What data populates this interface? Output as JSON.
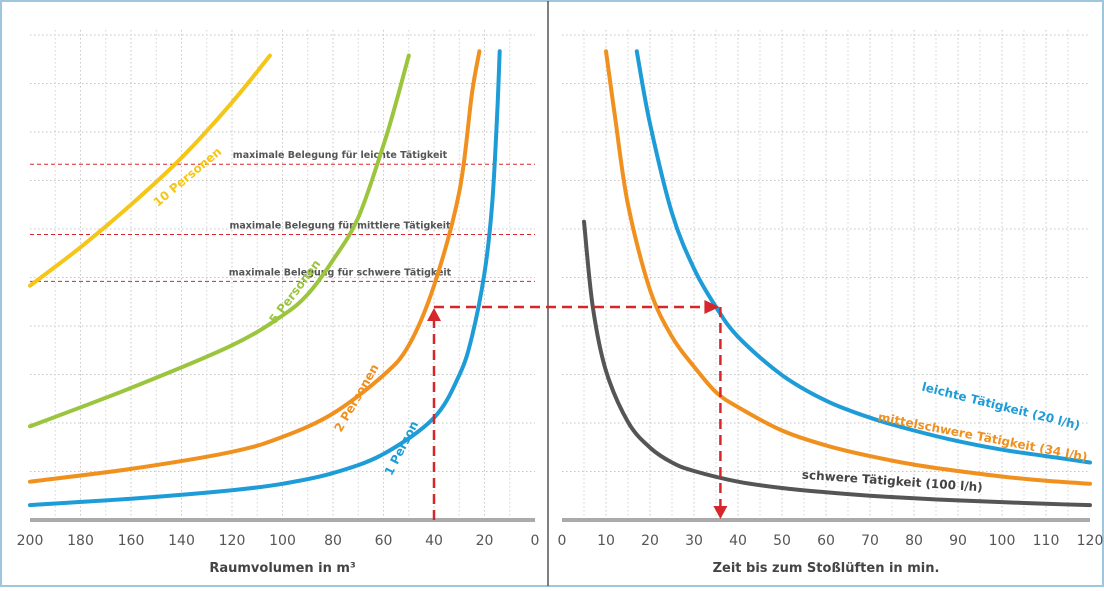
{
  "chart_data": [
    {
      "type": "line",
      "xlabel": "Raumvolumen in m³",
      "x_reversed": true,
      "xlim": [
        0,
        200
      ],
      "xticks": [
        200,
        180,
        160,
        140,
        120,
        100,
        80,
        60,
        40,
        20,
        0
      ],
      "grid": true,
      "series": [
        {
          "name": "10 Personen",
          "color": "#F5C518",
          "x": [
            200,
            180,
            160,
            140,
            120,
            105
          ],
          "y": [
            5.5,
            6.4,
            7.4,
            8.5,
            9.8,
            10.9
          ]
        },
        {
          "name": "5 Personen",
          "color": "#9BC53D",
          "x": [
            200,
            160,
            120,
            100,
            90,
            80,
            70,
            60,
            55,
            50
          ],
          "y": [
            2.2,
            3.1,
            4.1,
            4.8,
            5.3,
            6.1,
            7.1,
            8.8,
            9.8,
            10.9
          ]
        },
        {
          "name": "2 Personen",
          "color": "#F0901E",
          "x": [
            200,
            160,
            120,
            100,
            80,
            60,
            50,
            40,
            30,
            25,
            22
          ],
          "y": [
            0.9,
            1.2,
            1.6,
            1.95,
            2.5,
            3.4,
            4.1,
            5.5,
            7.7,
            10.0,
            11.0
          ]
        },
        {
          "name": "1 Person",
          "color": "#1E9CD7",
          "x": [
            200,
            160,
            120,
            100,
            80,
            60,
            40,
            30,
            25,
            20,
            17,
            15,
            14
          ],
          "y": [
            0.35,
            0.5,
            0.7,
            0.85,
            1.1,
            1.55,
            2.4,
            3.4,
            4.3,
            5.8,
            7.4,
            9.5,
            11.0
          ]
        }
      ],
      "reference_lines": [
        {
          "label": "maximale Belegung für leichte Tätigkeit",
          "y": 8.35
        },
        {
          "label": "maximale Belegung für mittlere Tätigkeit",
          "y": 6.7
        },
        {
          "label": "maximale Belegung für schwere Tätigkeit",
          "y": 5.6
        }
      ],
      "example_reading": {
        "x": 40,
        "y": 5.0
      }
    },
    {
      "type": "line",
      "xlabel": "Zeit bis zum Stoßlüften in min.",
      "xlim": [
        0,
        120
      ],
      "xticks": [
        0,
        10,
        20,
        30,
        40,
        50,
        60,
        70,
        80,
        90,
        100,
        110,
        120
      ],
      "grid": true,
      "series": [
        {
          "name": "leichte Tätigkeit (20 l/h)",
          "color": "#1E9CD7",
          "x": [
            17,
            20,
            25,
            30,
            35,
            40,
            50,
            60,
            70,
            80,
            90,
            100,
            110,
            120
          ],
          "y": [
            11.0,
            9.3,
            7.2,
            5.9,
            5.0,
            4.3,
            3.4,
            2.8,
            2.4,
            2.1,
            1.85,
            1.65,
            1.5,
            1.35
          ]
        },
        {
          "name": "mittelschwere Tätigkeit (34 l/h)",
          "color": "#F0901E",
          "x": [
            10,
            12,
            15,
            20,
            25,
            30,
            35,
            40,
            50,
            60,
            70,
            80,
            90,
            100,
            110,
            120
          ],
          "y": [
            11.0,
            9.5,
            7.4,
            5.4,
            4.3,
            3.6,
            3.0,
            2.65,
            2.1,
            1.75,
            1.5,
            1.3,
            1.15,
            1.02,
            0.92,
            0.85
          ]
        },
        {
          "name": "schwere Tätigkeit (100 l/h)",
          "color": "#555555",
          "x": [
            5,
            7,
            10,
            15,
            20,
            25,
            30,
            40,
            50,
            60,
            70,
            80,
            90,
            100,
            110,
            120
          ],
          "y": [
            7.0,
            5.0,
            3.5,
            2.3,
            1.7,
            1.35,
            1.15,
            0.9,
            0.75,
            0.65,
            0.57,
            0.51,
            0.46,
            0.42,
            0.38,
            0.35
          ]
        }
      ],
      "example_reading": {
        "x": 36,
        "y": 5.0
      }
    }
  ],
  "colors": {
    "frame": "#9FC6DD",
    "annotation": "#D7262B",
    "axis": "#AAAAAA",
    "tick_text": "#555555",
    "label_text": "#444444"
  }
}
